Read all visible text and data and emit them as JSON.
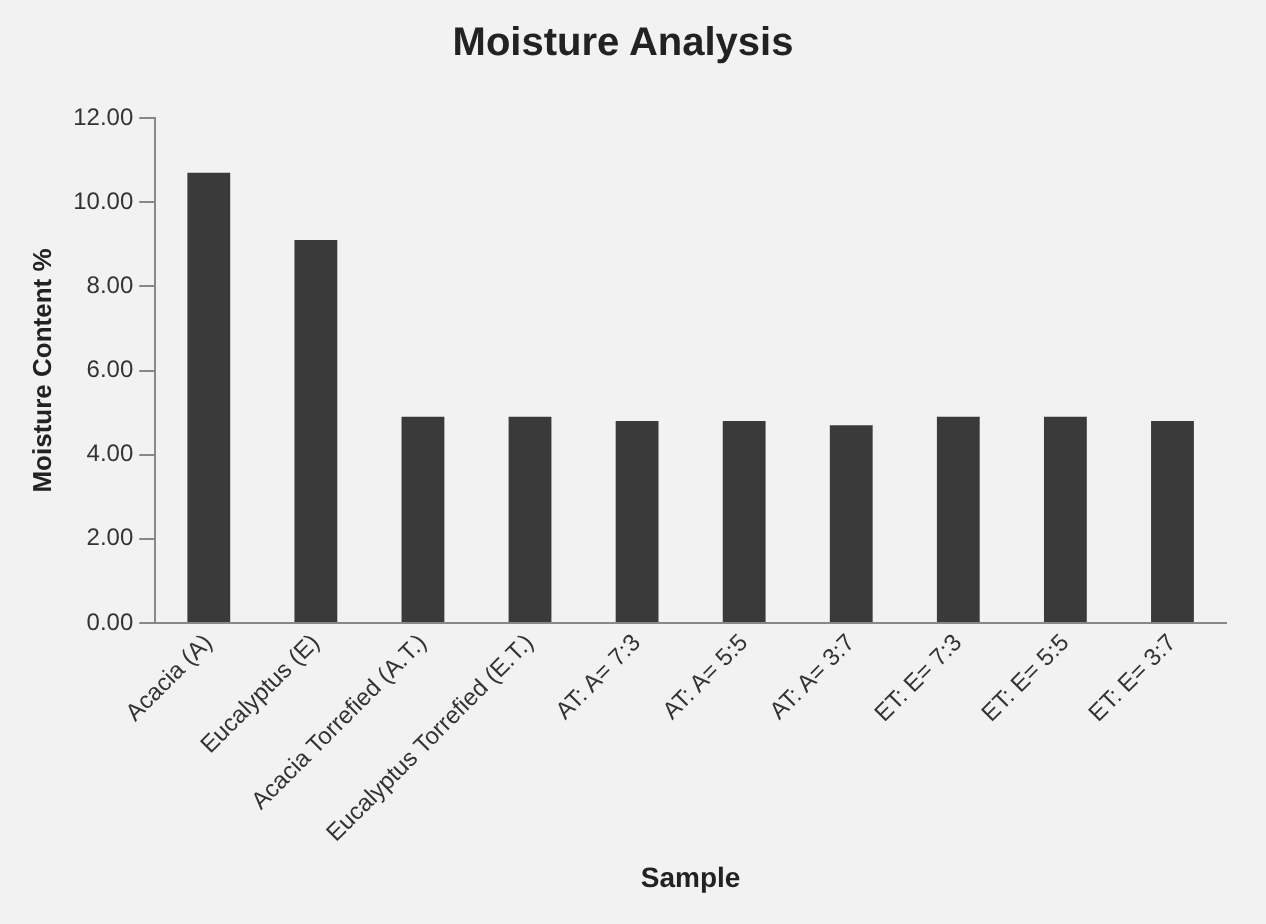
{
  "chart_data": {
    "type": "bar",
    "title": "Moisture Analysis",
    "xlabel": "Sample",
    "ylabel": "Moisture Content %",
    "categories": [
      "Acacia (A)",
      "Eucalyptus (E)",
      "Acacia Torrefied (A.T.)",
      "Eucalyptus Torrefied (E.T.)",
      "AT: A= 7:3",
      "AT: A= 5:5",
      "AT: A= 3:7",
      "ET: E= 7:3",
      "ET: E= 5:5",
      "ET: E= 3:7"
    ],
    "values": [
      10.7,
      9.1,
      4.9,
      4.9,
      4.8,
      4.8,
      4.7,
      4.9,
      4.9,
      4.8
    ],
    "color": "#3a3a3a",
    "ylim": [
      0,
      12
    ],
    "yticks": [
      {
        "value": 0,
        "label": "0.00"
      },
      {
        "value": 2,
        "label": "2.00"
      },
      {
        "value": 4,
        "label": "4.00"
      },
      {
        "value": 6,
        "label": "6.00"
      },
      {
        "value": 8,
        "label": "8.00"
      },
      {
        "value": 10,
        "label": "10.00"
      },
      {
        "value": 12,
        "label": "12.00"
      }
    ],
    "grid": false,
    "legend": false
  }
}
